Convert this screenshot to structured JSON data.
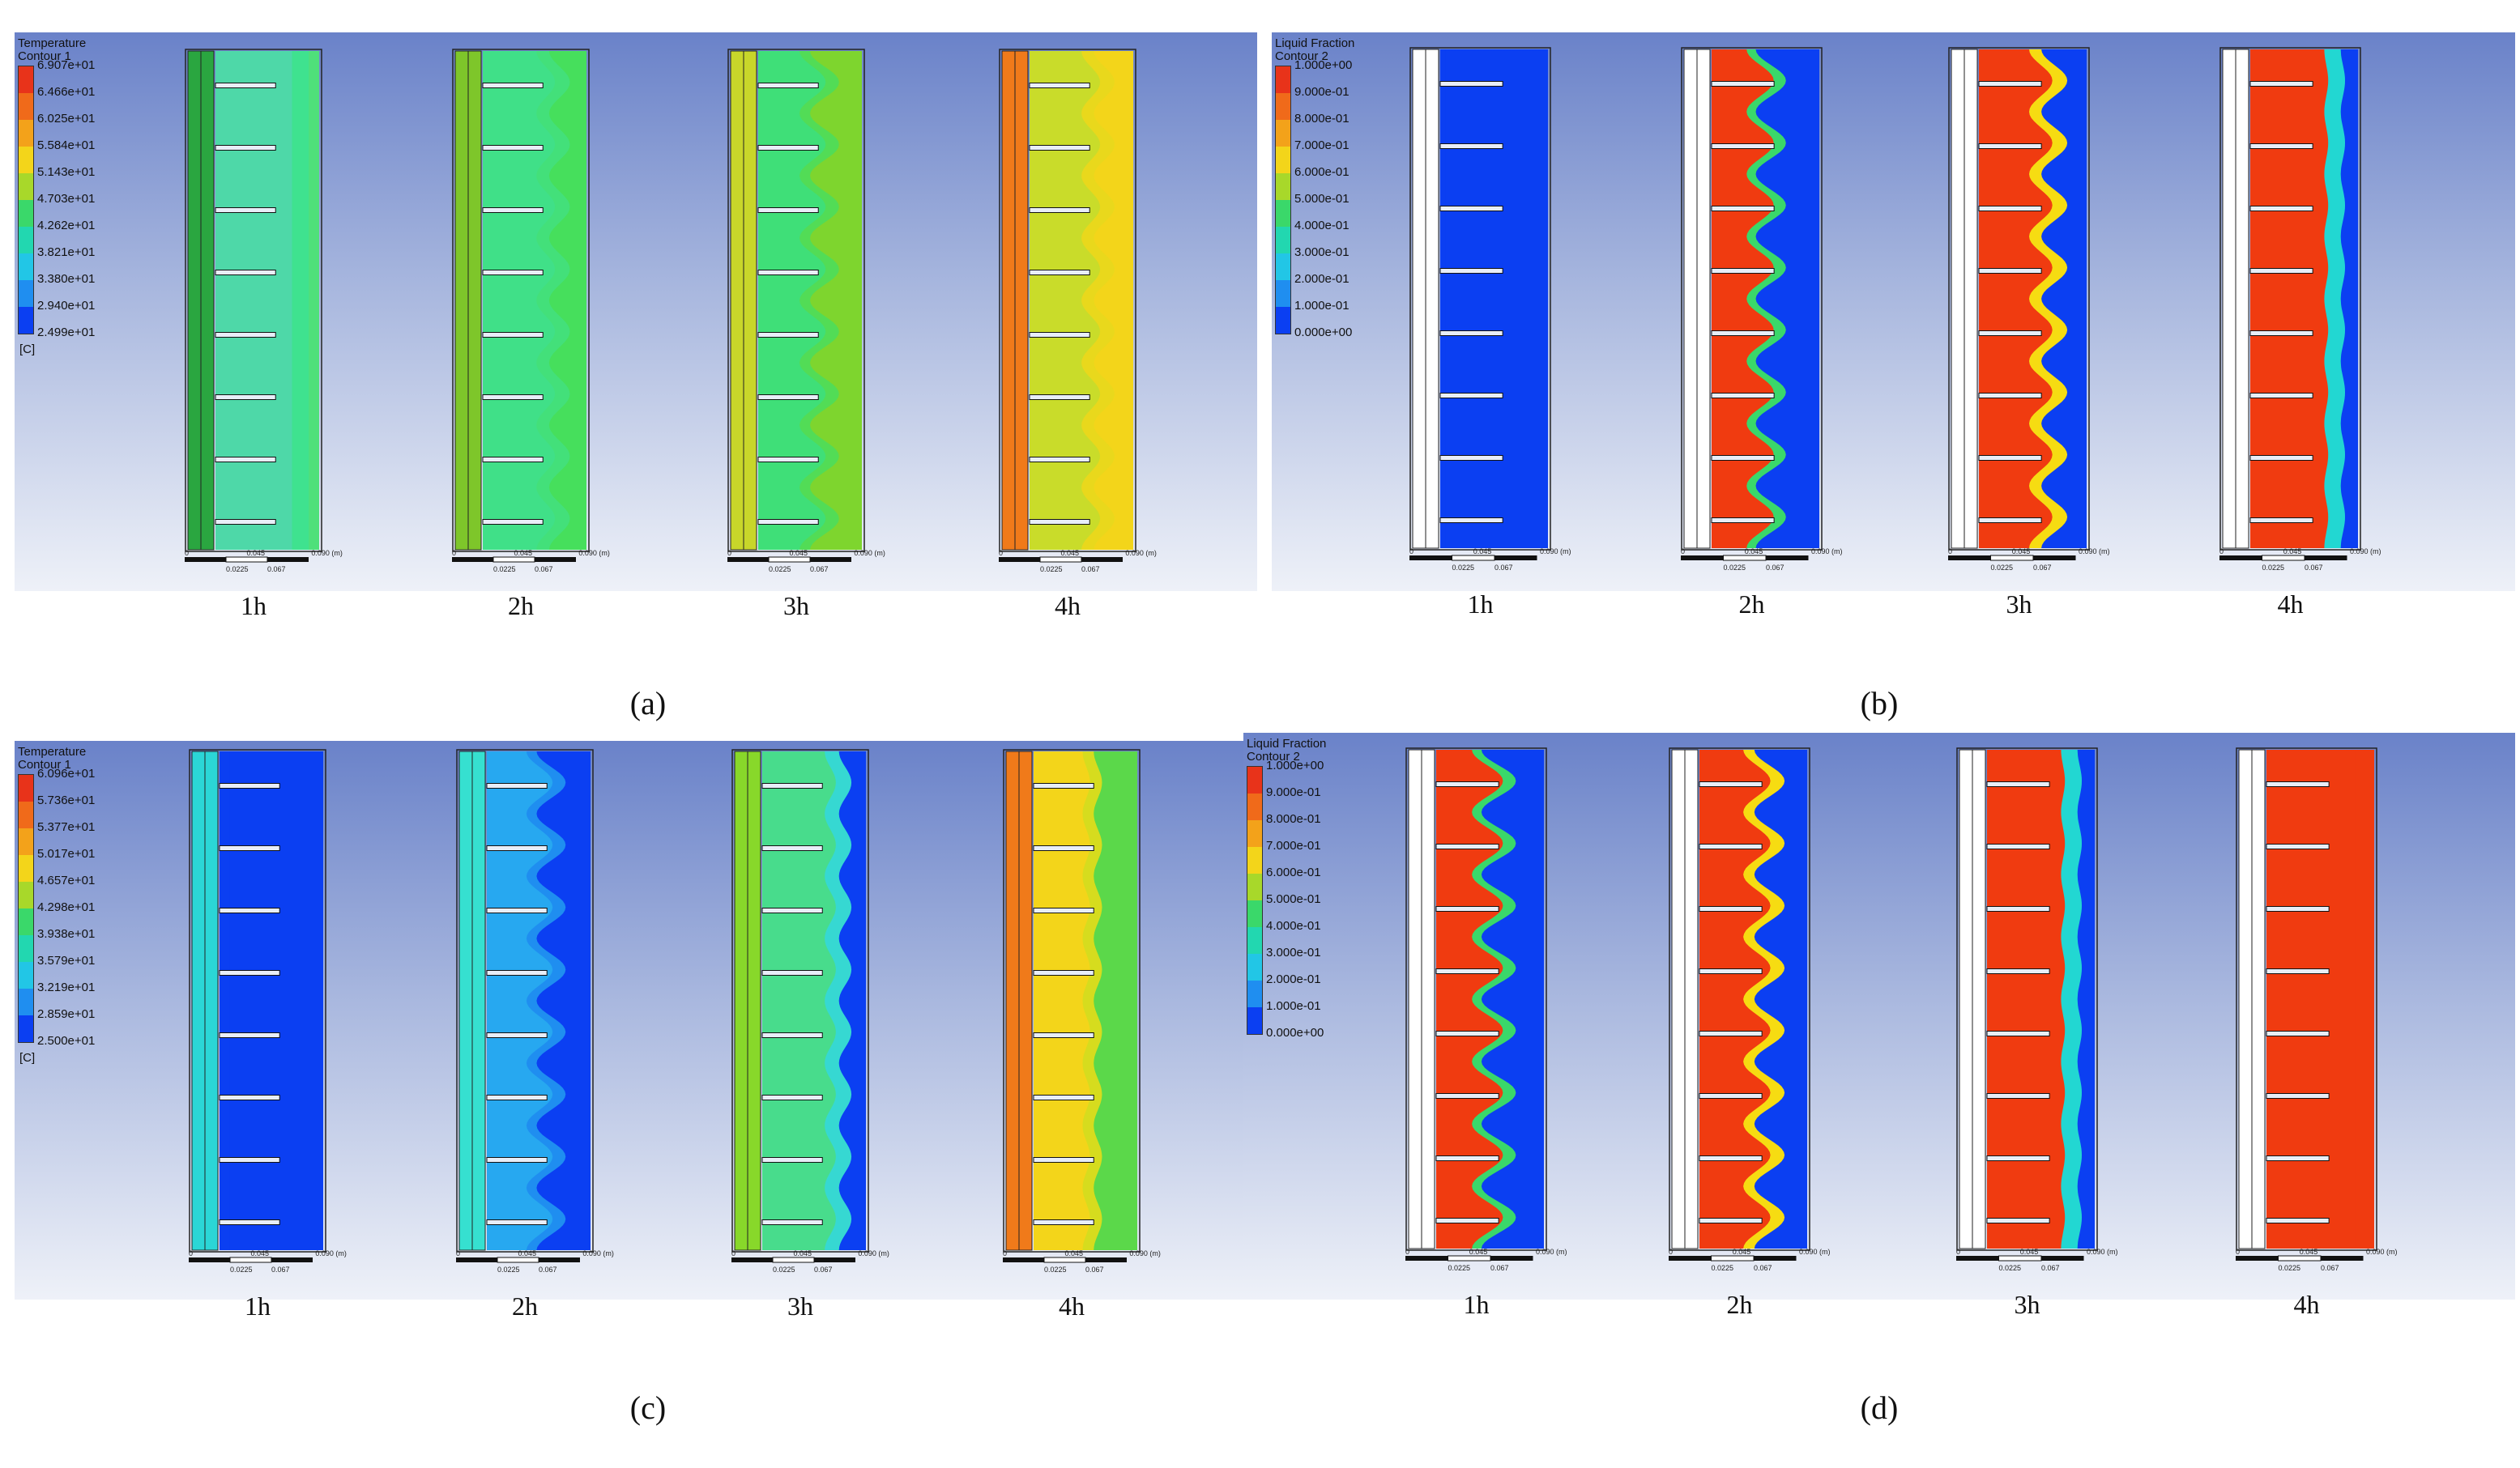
{
  "figures": [
    {
      "id": "a",
      "label": "(a)",
      "legend": {
        "title": "Temperature\nContour 1",
        "values": [
          "6.907e+01",
          "6.466e+01",
          "6.025e+01",
          "5.584e+01",
          "5.143e+01",
          "4.703e+01",
          "4.262e+01",
          "3.821e+01",
          "3.380e+01",
          "2.940e+01",
          "2.499e+01"
        ],
        "unit": "[C]"
      },
      "panels": [
        {
          "time": "1h",
          "colors": {
            "bg": "#4fe07a",
            "mid": "#3fe28f",
            "front": "#4ed8a8",
            "wall": "#2aa640"
          },
          "front": 0.9,
          "amp": 0.0
        },
        {
          "time": "2h",
          "colors": {
            "bg": "#46df5c",
            "mid": "#43e07a",
            "front": "#40e088",
            "wall": "#7ec62a"
          },
          "front": 0.74,
          "amp": 0.25
        },
        {
          "time": "3h",
          "colors": {
            "bg": "#7ed52e",
            "mid": "#52dc56",
            "front": "#3fdf78",
            "wall": "#c8d62a"
          },
          "front": 0.64,
          "amp": 0.35
        },
        {
          "time": "4h",
          "colors": {
            "bg": "#f3d51a",
            "mid": "#e9d81c",
            "front": "#c9dc2a",
            "wall": "#f07a1a"
          },
          "front": 0.72,
          "amp": 0.25
        }
      ]
    },
    {
      "id": "b",
      "label": "(b)",
      "legend": {
        "title": "Liquid Fraction\nContour 2",
        "values": [
          "1.000e+00",
          "9.000e-01",
          "8.000e-01",
          "7.000e-01",
          "6.000e-01",
          "5.000e-01",
          "4.000e-01",
          "3.000e-01",
          "2.000e-01",
          "1.000e-01",
          "0.000e+00"
        ],
        "unit": ""
      },
      "panels": [
        {
          "time": "1h",
          "colors": {
            "bg": "#0b3ff2",
            "mid": "#0b3ff2",
            "front": "#0b3ff2",
            "wall": "#ffffff"
          },
          "front": 0.05,
          "amp": 0.0
        },
        {
          "time": "2h",
          "colors": {
            "bg": "#0b3ff2",
            "mid": "#3ad86a",
            "front": "#f03b10",
            "wall": "#ffffff"
          },
          "front": 0.55,
          "amp": 0.35
        },
        {
          "time": "3h",
          "colors": {
            "bg": "#0b3ff2",
            "mid": "#f6dc12",
            "front": "#f03b10",
            "wall": "#ffffff"
          },
          "front": 0.7,
          "amp": 0.3
        },
        {
          "time": "4h",
          "colors": {
            "bg": "#0b3ff2",
            "mid": "#22d7d2",
            "front": "#f03b10",
            "wall": "#ffffff"
          },
          "front": 0.86,
          "amp": 0.05
        }
      ]
    },
    {
      "id": "c",
      "label": "(c)",
      "legend": {
        "title": "Temperature\nContour 1",
        "values": [
          "6.096e+01",
          "5.736e+01",
          "5.377e+01",
          "5.017e+01",
          "4.657e+01",
          "4.298e+01",
          "3.938e+01",
          "3.579e+01",
          "3.219e+01",
          "2.859e+01",
          "2.500e+01"
        ],
        "unit": "[C]"
      },
      "panels": [
        {
          "time": "1h",
          "colors": {
            "bg": "#0b3ff2",
            "mid": "#0b3ff2",
            "front": "#0b3ff2",
            "wall": "#2bd6d6"
          },
          "front": 0.1,
          "amp": 0.0
        },
        {
          "time": "2h",
          "colors": {
            "bg": "#0b3ff2",
            "mid": "#1f8ef0",
            "front": "#27a8f0",
            "wall": "#36e0d0"
          },
          "front": 0.62,
          "amp": 0.35
        },
        {
          "time": "3h",
          "colors": {
            "bg": "#0b3ff2",
            "mid": "#36d8d2",
            "front": "#48dc8c",
            "wall": "#88d82a"
          },
          "front": 0.8,
          "amp": 0.15
        },
        {
          "time": "4h",
          "colors": {
            "bg": "#5bd84a",
            "mid": "#d6dc1e",
            "front": "#f3d51a",
            "wall": "#f07a1a"
          },
          "front": 0.62,
          "amp": 0.1
        }
      ]
    },
    {
      "id": "d",
      "label": "(d)",
      "legend": {
        "title": "Liquid Fraction\nContour 2",
        "values": [
          "1.000e+00",
          "9.000e-01",
          "8.000e-01",
          "7.000e-01",
          "6.000e-01",
          "5.000e-01",
          "4.000e-01",
          "3.000e-01",
          "2.000e-01",
          "1.000e-01",
          "0.000e+00"
        ],
        "unit": ""
      },
      "panels": [
        {
          "time": "1h",
          "colors": {
            "bg": "#0b3ff2",
            "mid": "#3ad86a",
            "front": "#f03b10",
            "wall": "#ffffff"
          },
          "front": 0.58,
          "amp": 0.4
        },
        {
          "time": "2h",
          "colors": {
            "bg": "#0b3ff2",
            "mid": "#f6dc12",
            "front": "#f03b10",
            "wall": "#ffffff"
          },
          "front": 0.65,
          "amp": 0.35
        },
        {
          "time": "3h",
          "colors": {
            "bg": "#0b3ff2",
            "mid": "#22d7d2",
            "front": "#f03b10",
            "wall": "#ffffff"
          },
          "front": 0.86,
          "amp": 0.05
        },
        {
          "time": "4h",
          "colors": {
            "bg": "#0b3ff2",
            "mid": "#f03b10",
            "front": "#f03b10",
            "wall": "#ffffff"
          },
          "front": 1.0,
          "amp": 0.0
        }
      ]
    }
  ],
  "legend_colors": [
    "#e8331a",
    "#f06a1a",
    "#f3a21a",
    "#f3d51a",
    "#a8d82a",
    "#3ad86a",
    "#22d7b0",
    "#22c6e6",
    "#1f8ef0",
    "#0b3ff2"
  ],
  "scale_ticks": [
    "0",
    "0.0225",
    "0.045",
    "0.067",
    "0.090 (m)"
  ]
}
